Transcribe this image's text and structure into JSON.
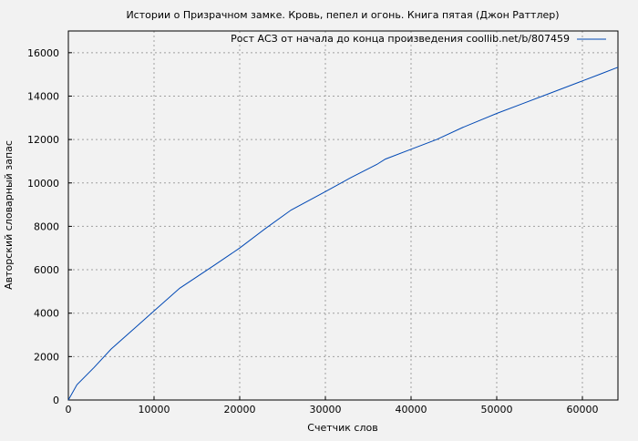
{
  "chart_data": {
    "type": "line",
    "title": "Истории о Призрачном замке. Кровь, пепел и огонь. Книга пятая (Джон Раттлер)",
    "xlabel": "Счетчик слов",
    "ylabel": "Авторский словарный запас",
    "xlim": [
      0,
      64150
    ],
    "ylim": [
      0,
      17000
    ],
    "xticks": [
      0,
      10000,
      20000,
      30000,
      40000,
      50000,
      60000
    ],
    "yticks": [
      0,
      2000,
      4000,
      6000,
      8000,
      10000,
      12000,
      14000,
      16000
    ],
    "grid": true,
    "legend_position": "top-right",
    "series": [
      {
        "name": "Рост АСЗ от начала до конца произведения coollib.net/b/807459",
        "color": "#0048b4",
        "x": [
          0,
          1000,
          3000,
          5000,
          8000,
          10000,
          13000,
          17000,
          20000,
          23000,
          26000,
          30000,
          33000,
          36000,
          37000,
          40000,
          43000,
          46000,
          50000,
          53000,
          56000,
          60000,
          62000,
          64150
        ],
        "y": [
          0,
          700,
          1500,
          2350,
          3400,
          4100,
          5150,
          6200,
          7000,
          7900,
          8750,
          9600,
          10250,
          10850,
          11100,
          11550,
          12000,
          12550,
          13200,
          13650,
          14100,
          14700,
          15000,
          15330
        ]
      }
    ]
  }
}
